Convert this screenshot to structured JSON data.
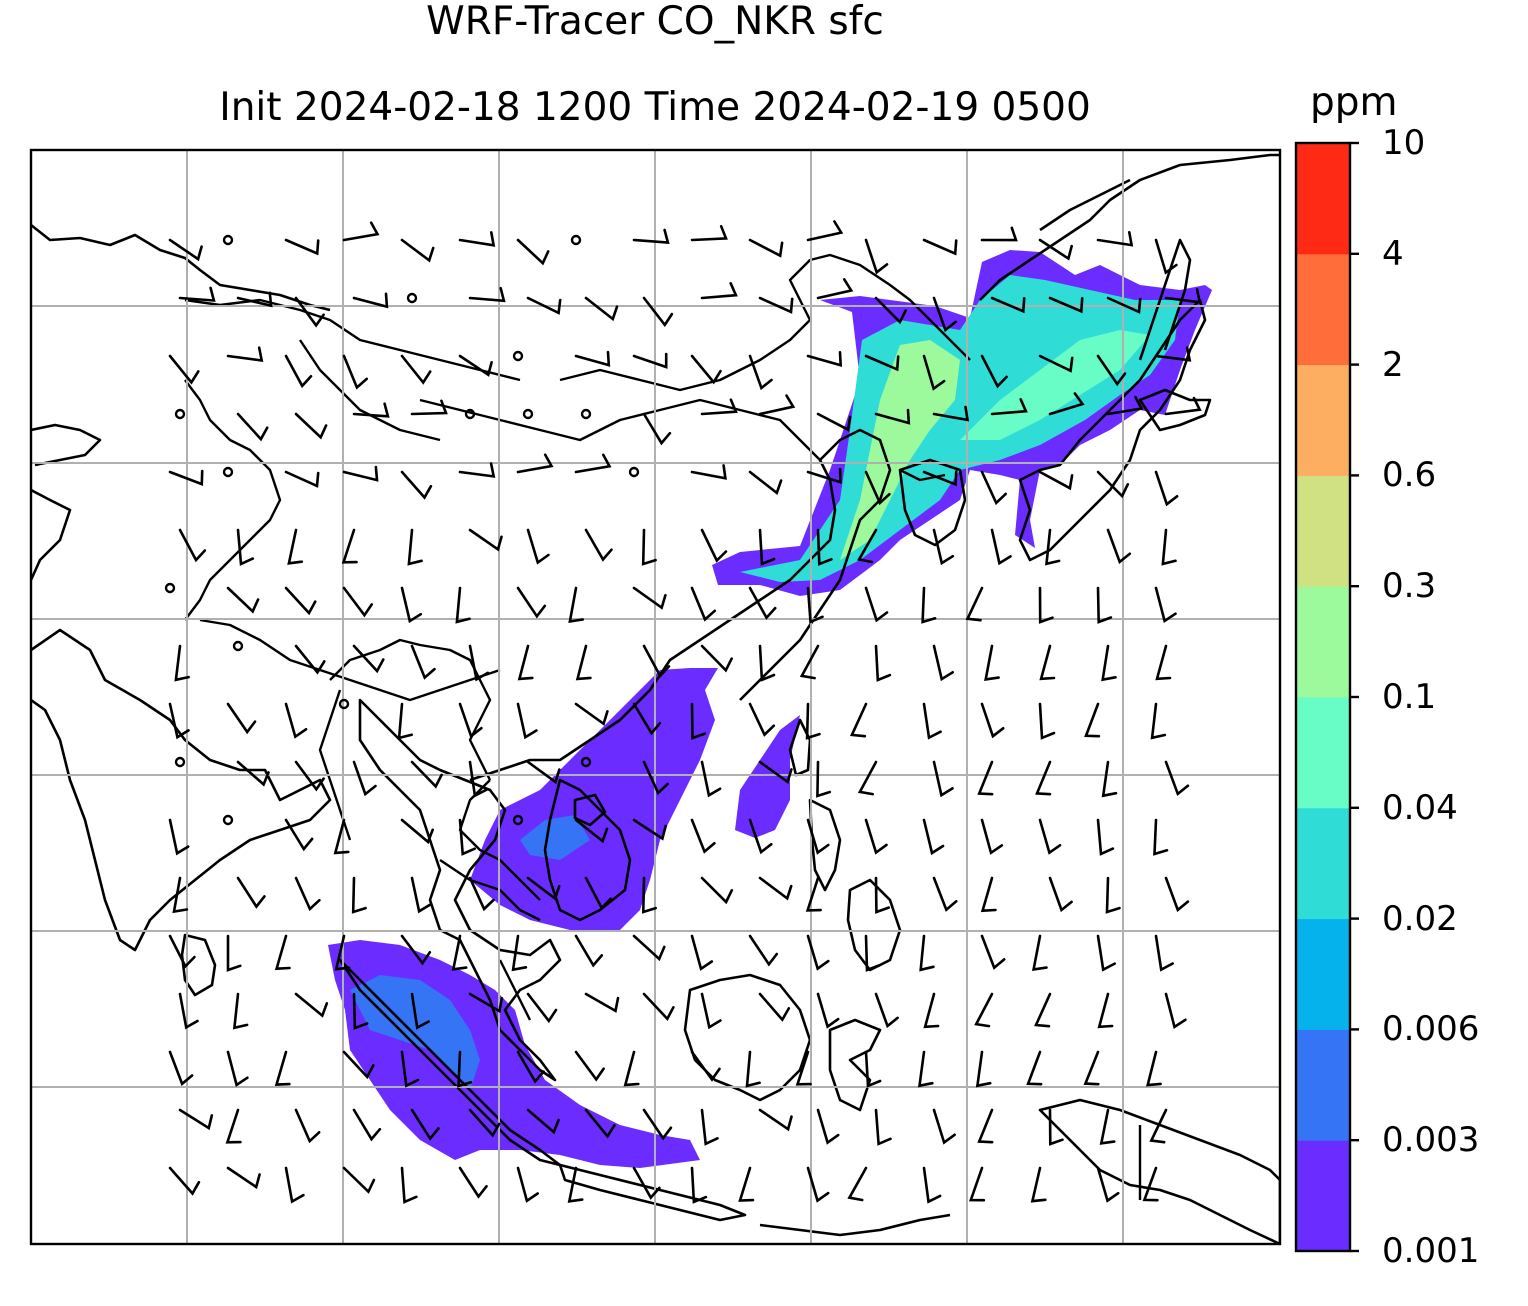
{
  "title": {
    "line1": "WRF-Tracer CO_NKR sfc",
    "line2": "Init 2024-02-18 1200 Time 2024-02-19 0500"
  },
  "colorbar": {
    "unit": "ppm",
    "ticks": [
      "0.001",
      "0.003",
      "0.006",
      "0.02",
      "0.04",
      "0.1",
      "0.3",
      "0.6",
      "2",
      "4",
      "10"
    ],
    "colors": [
      "#6a2cff",
      "#3575f5",
      "#05b2ec",
      "#30dcd6",
      "#68fcc6",
      "#9cfa9c",
      "#d0e184",
      "#fdae61",
      "#ff6e3a",
      "#ff2a15"
    ]
  },
  "map": {
    "field_color_low": "#6a2cff",
    "field_color_mid": "#30dcd6",
    "field_color_high": "#9cfa9c"
  }
}
